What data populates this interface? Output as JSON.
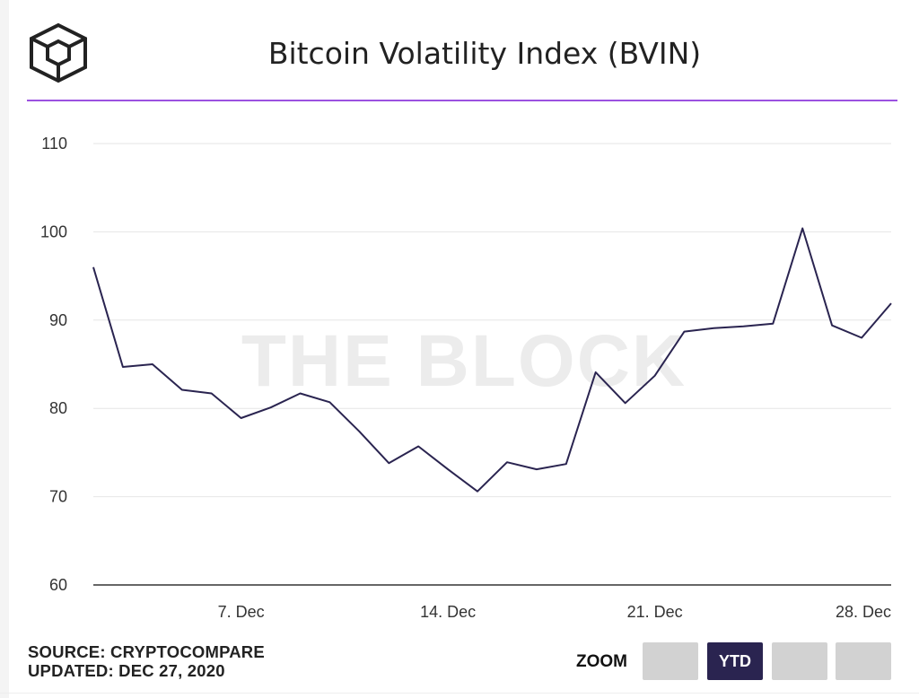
{
  "header": {
    "title": "Bitcoin Volatility Index (BVIN)",
    "accent_color": "#9b51e0"
  },
  "watermark": "THE BLOCK",
  "footer": {
    "source": "SOURCE: CRYPTOCOMPARE",
    "updated": "UPDATED: DEC 27, 2020"
  },
  "zoom": {
    "label": "ZOOM",
    "buttons": [
      "",
      "YTD",
      "",
      ""
    ],
    "active_index": 1
  },
  "chart_data": {
    "type": "line",
    "title": "Bitcoin Volatility Index (BVIN)",
    "xlabel": "",
    "ylabel": "",
    "x_start": "2020-12-02",
    "x": [
      "2020-12-02",
      "2020-12-03",
      "2020-12-04",
      "2020-12-05",
      "2020-12-06",
      "2020-12-07",
      "2020-12-08",
      "2020-12-09",
      "2020-12-10",
      "2020-12-11",
      "2020-12-12",
      "2020-12-13",
      "2020-12-14",
      "2020-12-15",
      "2020-12-16",
      "2020-12-17",
      "2020-12-18",
      "2020-12-19",
      "2020-12-20",
      "2020-12-21",
      "2020-12-22",
      "2020-12-23",
      "2020-12-24",
      "2020-12-25",
      "2020-12-26",
      "2020-12-27",
      "2020-12-28",
      "2020-12-29"
    ],
    "series": [
      {
        "name": "BVIN",
        "color": "#2a2450",
        "values": [
          96.0,
          84.7,
          85.0,
          82.1,
          81.7,
          78.9,
          80.1,
          81.7,
          80.7,
          77.4,
          73.8,
          75.7,
          73.1,
          70.6,
          73.9,
          73.1,
          73.7,
          84.1,
          80.6,
          83.7,
          88.7,
          89.1,
          89.3,
          89.6,
          100.4,
          89.4,
          88.0,
          91.9
        ]
      }
    ],
    "x_tick_labels": [
      {
        "date": "2020-12-07",
        "label": "7. Dec"
      },
      {
        "date": "2020-12-14",
        "label": "14. Dec"
      },
      {
        "date": "2020-12-21",
        "label": "21. Dec"
      },
      {
        "date": "2020-12-28",
        "label": "28. Dec"
      }
    ],
    "y_ticks": [
      60,
      70,
      80,
      90,
      100,
      110
    ],
    "ylim": [
      60,
      110
    ],
    "grid": true,
    "legend": "none"
  }
}
